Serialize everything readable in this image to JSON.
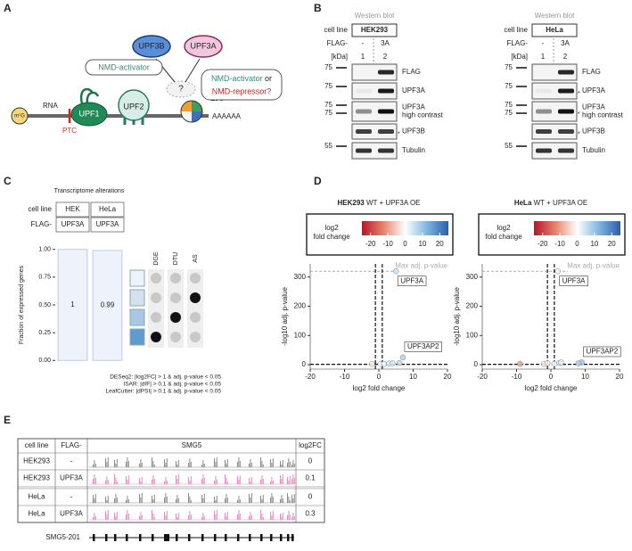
{
  "panel_labels": [
    "A",
    "B",
    "C",
    "D",
    "E"
  ],
  "panel_a": {
    "upf3b": "UPF3B",
    "upf3a": "UPF3A",
    "bubble_activator": "NMD-activator",
    "bubble_choice": {
      "activator": "NMD-activator",
      "or": "or",
      "repressor": "NMD-repressor?"
    },
    "question": "?",
    "cap": "m⁷G",
    "rna": "RNA",
    "upf1": "UPF1",
    "upf2": "UPF2",
    "ejc": "EJC",
    "poly_a": "AAAAAA",
    "ptc": "PTC"
  },
  "panel_b": {
    "blots": [
      {
        "header": "Western blot",
        "cell_line_label": "cell line",
        "cell_line": "HEK293",
        "flag_label": "FLAG-",
        "lanes": [
          "-",
          "3A"
        ],
        "kda_label": "[kDa]",
        "lane_numbers": [
          1,
          2
        ],
        "rows": [
          {
            "label": [
              "FLAG"
            ],
            "markers": [
              75
            ]
          },
          {
            "label": [
              "UPF3A"
            ],
            "markers": [
              75
            ]
          },
          {
            "label": [
              "UPF3A",
              "high contrast"
            ],
            "markers": [
              75,
              75
            ]
          },
          {
            "label": [
              "UPF3B"
            ],
            "markers": [],
            "note": "*"
          },
          {
            "label": [
              "Tubulin"
            ],
            "markers": [
              55
            ]
          }
        ]
      },
      {
        "header": "Western blot",
        "cell_line_label": "cell line",
        "cell_line": "HeLa",
        "flag_label": "FLAG-",
        "lanes": [
          "-",
          "3A"
        ],
        "kda_label": "[kDa]",
        "lane_numbers": [
          1,
          2
        ],
        "rows": [
          {
            "label": [
              "FLAG"
            ],
            "markers": [
              75
            ]
          },
          {
            "label": [
              "UPF3A"
            ],
            "markers": [
              75
            ],
            "note": "*"
          },
          {
            "label": [
              "UPF3A",
              "high contrast"
            ],
            "markers": [
              75,
              75
            ],
            "note": "*"
          },
          {
            "label": [
              "UPF3B"
            ],
            "markers": [],
            "note": "*"
          },
          {
            "label": [
              "Tubulin"
            ],
            "markers": [
              55
            ]
          }
        ]
      }
    ]
  },
  "chart_data": [
    {
      "type": "bar",
      "title": "Transcriptome alterations",
      "row_labels": [
        "cell line",
        "FLAG-"
      ],
      "categories": [
        "HEK",
        "HeLa"
      ],
      "flag": [
        "UPF3A",
        "UPF3A"
      ],
      "ylabel": "Fraction of expressed genes",
      "values": [
        1,
        0.99
      ],
      "color": "#eef3fb",
      "ylim": [
        -0.03,
        1.03
      ],
      "yticks": [
        {
          "value": 0,
          "label": "0.00"
        },
        0.25,
        {
          "value": 0.5,
          "label": "0.50"
        },
        0.75,
        {
          "value": 1,
          "label": "1.00"
        }
      ],
      "matrix": {
        "columns": [
          "DGE",
          "DTU",
          "AS"
        ],
        "colors": [
          "#eef3fb",
          "#d3e1f1",
          "#a9c6e6",
          "#5e9bd0"
        ],
        "dots": [
          [
            0,
            0,
            0
          ],
          [
            0,
            0,
            1
          ],
          [
            0,
            1,
            0
          ],
          [
            1,
            0,
            0
          ]
        ]
      },
      "footnotes": [
        "DESeq2: |log2FC| > 1 & adj. p-value < 0.05",
        "ISAR: |dIF| > 0.1 & adj. p-value < 0.05",
        "LeafCutter: |dPSI| > 0.1 & adj. p-value < 0.05"
      ]
    },
    {
      "type": "scatter",
      "title_bold": "HEK293",
      "title": "WT + UPF3A OE",
      "legend": {
        "title": [
          "log2",
          "fold change"
        ],
        "lim": [
          -25,
          25
        ],
        "ticks": [
          -20,
          -10,
          0,
          10,
          20
        ],
        "colors": [
          "#b2182b",
          "#e7856d",
          "#ffffff",
          "#7fb6e0",
          "#2b5fa8"
        ]
      },
      "xlabel": "log2 fold change",
      "ylabel": "-log10 adj. p-value",
      "xlim": [
        -20,
        20
      ],
      "ylim": [
        -15,
        345
      ],
      "xticks": [
        -20,
        -10,
        0,
        10,
        20
      ],
      "yticks": [
        0,
        100,
        200,
        300
      ],
      "x": [
        5,
        7,
        -2,
        0.5,
        1.5,
        3,
        4,
        6
      ],
      "y": [
        320,
        25,
        3,
        2,
        3,
        4,
        5,
        6
      ],
      "point_labels": [
        "UPF3A",
        "UPF3AP2",
        null,
        null,
        null,
        null,
        null,
        null
      ],
      "max_line": {
        "value": 320,
        "label": "Max adj. p-value"
      },
      "thresholds": {
        "x": [
          -1,
          1
        ],
        "y": 1.3
      }
    },
    {
      "type": "scatter",
      "title_bold": "HeLa",
      "title": "WT + UPF3A OE",
      "legend": {
        "title": [
          "log2",
          "fold change"
        ],
        "lim": [
          -25,
          25
        ],
        "ticks": [
          -20,
          -10,
          0,
          10,
          20
        ],
        "colors": [
          "#b2182b",
          "#e7856d",
          "#ffffff",
          "#7fb6e0",
          "#2b5fa8"
        ]
      },
      "xlabel": "log2 fold change",
      "ylabel": "-log10 adj. p-value",
      "xlim": [
        -20,
        20
      ],
      "ylim": [
        -15,
        345
      ],
      "xticks": [
        -20,
        -10,
        0,
        10,
        20
      ],
      "yticks": [
        0,
        100,
        200,
        300
      ],
      "x": [
        2,
        9,
        -9,
        -2,
        -1,
        1,
        2.5,
        3,
        8
      ],
      "y": [
        320,
        8,
        3,
        3,
        5,
        3,
        6,
        8,
        5
      ],
      "point_labels": [
        "UPF3A",
        "UPF3AP2",
        null,
        null,
        null,
        null,
        null,
        null,
        null
      ],
      "max_line": {
        "value": 320,
        "label": "Max adj. p-value"
      },
      "thresholds": {
        "x": [
          -1,
          1
        ],
        "y": 1.3
      }
    }
  ],
  "panel_e": {
    "headers": [
      "cell line",
      "FLAG-",
      "SMG5",
      "log2FC"
    ],
    "rows": [
      [
        "HEK293",
        "-",
        0
      ],
      [
        "HEK293",
        "UPF3A",
        0.1
      ],
      [
        "HeLa",
        "-",
        0
      ],
      [
        "HeLa",
        "UPF3A",
        0.3
      ]
    ],
    "transcript": "SMG5-201"
  }
}
